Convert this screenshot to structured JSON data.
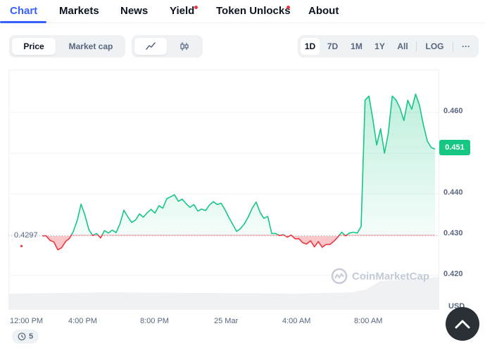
{
  "nav": {
    "tabs": [
      {
        "label": "Chart",
        "active": true
      },
      {
        "label": "Markets"
      },
      {
        "label": "News"
      },
      {
        "label": "Yield",
        "dot": true
      },
      {
        "label": "Token Unlocks",
        "dot": true
      },
      {
        "label": "About"
      }
    ]
  },
  "toolbar": {
    "metric": {
      "price_label": "Price",
      "market_cap_label": "Market cap",
      "selected": "Price"
    },
    "chart_style": {
      "line_icon": "line-chart-icon",
      "candle_icon": "candlestick-icon",
      "selected": "line"
    },
    "ranges": [
      "1D",
      "7D",
      "1M",
      "1Y",
      "All"
    ],
    "selected_range": "1D",
    "log_label": "LOG",
    "more_label": "···"
  },
  "chart": {
    "open_price_label": "0.4297",
    "current_price_label": "0.451",
    "y_tick_labels": [
      "0.460",
      "0.440",
      "0.430",
      "0.420"
    ],
    "x_tick_labels": [
      "12:00 PM",
      "4:00 PM",
      "8:00 PM",
      "25 Mar",
      "4:00 AM",
      "8:00 AM"
    ],
    "currency_label": "USD",
    "watermark": "CoinMarketCap",
    "up_color": "#16c784",
    "down_color": "#ea3943"
  },
  "history_badge": {
    "count": "5"
  },
  "chart_data": {
    "type": "line",
    "baseline": 0.4297,
    "ylim": [
      0.415,
      0.468
    ],
    "y_ticks": [
      0.46,
      0.45,
      0.44,
      0.43,
      0.42
    ],
    "series": [
      {
        "values": [
          0.4297,
          0.4297,
          0.4286,
          0.4282,
          0.4263,
          0.4268,
          0.4283,
          0.4291,
          0.4308,
          0.4335,
          0.4375,
          0.4347,
          0.4312,
          0.4298,
          0.4303,
          0.4292,
          0.431,
          0.4304,
          0.4311,
          0.4305,
          0.4327,
          0.436,
          0.4344,
          0.433,
          0.4336,
          0.4351,
          0.4343,
          0.4354,
          0.4362,
          0.4353,
          0.4371,
          0.4365,
          0.4388,
          0.4393,
          0.4398,
          0.4382,
          0.4387,
          0.4376,
          0.4367,
          0.4374,
          0.4358,
          0.4363,
          0.4359,
          0.4373,
          0.4381,
          0.4374,
          0.4377,
          0.4361,
          0.4342,
          0.4325,
          0.4308,
          0.4315,
          0.4327,
          0.4344,
          0.4365,
          0.438,
          0.4355,
          0.434,
          0.4345,
          0.4303,
          0.4303,
          0.4298,
          0.43,
          0.4294,
          0.4299,
          0.429,
          0.429,
          0.428,
          0.4277,
          0.4285,
          0.427,
          0.4283,
          0.4269,
          0.4276,
          0.4276,
          0.4284,
          0.4294,
          0.4306,
          0.4297,
          0.4304,
          0.4306,
          0.4304,
          0.432,
          0.463,
          0.464,
          0.4584,
          0.452,
          0.456,
          0.45,
          0.455,
          0.464,
          0.463,
          0.461,
          0.458,
          0.463,
          0.4608,
          0.4645,
          0.4618,
          0.457,
          0.453,
          0.4514,
          0.451
        ]
      }
    ]
  }
}
